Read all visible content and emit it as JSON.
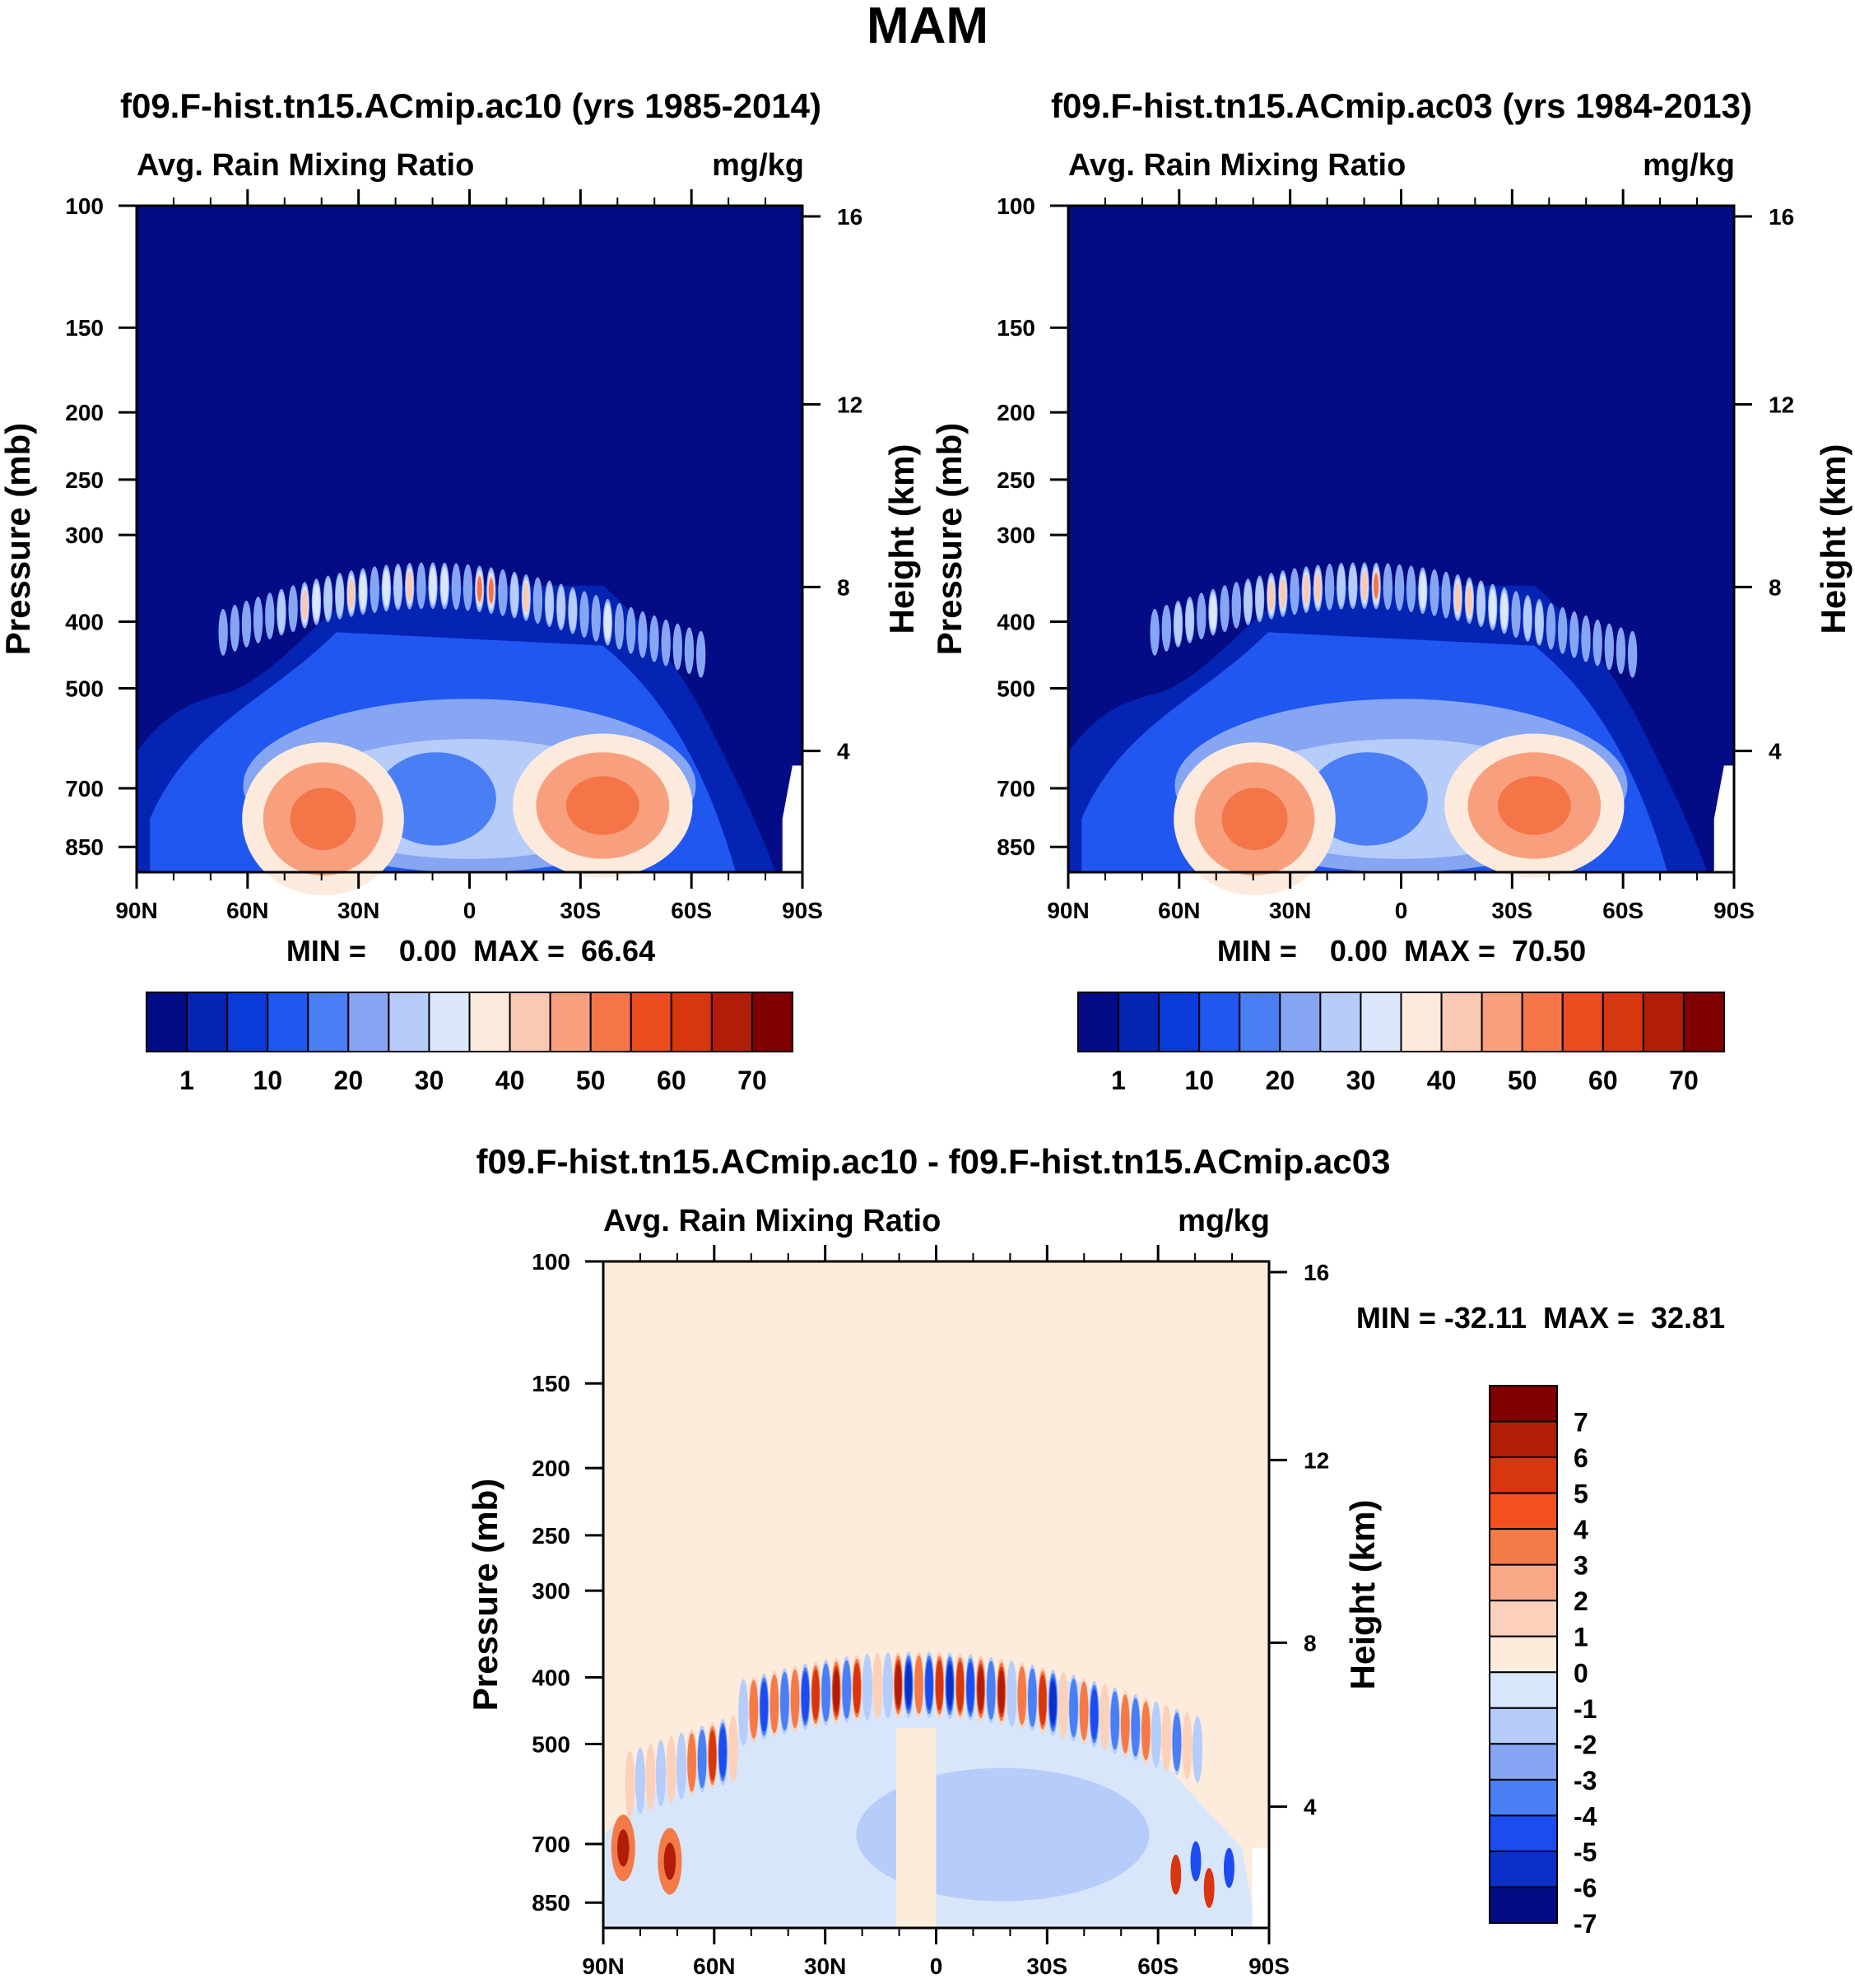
{
  "page_title": "MAM",
  "chart_data": [
    {
      "type": "heatmap",
      "id": "p1",
      "title": "f09.F-hist.tn15.ACmip.ac10 (yrs 1985-2014)",
      "subtitle_left": "Avg. Rain Mixing Ratio",
      "subtitle_right": "mg/kg",
      "ylabel": "Pressure (mb)",
      "ylabel_right": "Height (km)",
      "y_ticks": [
        "100",
        "150",
        "200",
        "250",
        "300",
        "400",
        "500",
        "700",
        "850"
      ],
      "y_ticks_right": [
        "16",
        "12",
        "8",
        "4"
      ],
      "x_ticks": [
        "90N",
        "60N",
        "30N",
        "0",
        "30S",
        "60S",
        "90S"
      ],
      "stats": "MIN =    0.00  MAX =  66.64",
      "colorbar_labels": [
        "1",
        "10",
        "20",
        "30",
        "40",
        "50",
        "60",
        "70"
      ],
      "colorbar_colors": [
        "#030c84",
        "#0424b4",
        "#0a3ad8",
        "#2057f0",
        "#4a7ef4",
        "#86a6f4",
        "#b6ccfa",
        "#dbe8fc",
        "#fcebdc",
        "#fbc9b1",
        "#f8a07e",
        "#f47548",
        "#ec4c1f",
        "#d8360f",
        "#b01e0a",
        "#800000"
      ],
      "min": 0.0,
      "max": 66.64,
      "max_value_text": "66.64"
    },
    {
      "type": "heatmap",
      "id": "p2",
      "title": "f09.F-hist.tn15.ACmip.ac03 (yrs 1984-2013)",
      "subtitle_left": "Avg. Rain Mixing Ratio",
      "subtitle_right": "mg/kg",
      "ylabel": "Pressure (mb)",
      "ylabel_right": "Height (km)",
      "y_ticks": [
        "100",
        "150",
        "200",
        "250",
        "300",
        "400",
        "500",
        "700",
        "850"
      ],
      "y_ticks_right": [
        "16",
        "12",
        "8",
        "4"
      ],
      "x_ticks": [
        "90N",
        "60N",
        "30N",
        "0",
        "30S",
        "60S",
        "90S"
      ],
      "stats": "MIN =    0.00  MAX =  70.50",
      "colorbar_labels": [
        "1",
        "10",
        "20",
        "30",
        "40",
        "50",
        "60",
        "70"
      ],
      "colorbar_colors": [
        "#030c84",
        "#0424b4",
        "#0a3ad8",
        "#2057f0",
        "#4a7ef4",
        "#86a6f4",
        "#b6ccfa",
        "#dbe8fc",
        "#fcebdc",
        "#fbc9b1",
        "#f8a07e",
        "#f47548",
        "#ec4c1f",
        "#d8360f",
        "#b01e0a",
        "#800000"
      ],
      "min": 0.0,
      "max": 70.5
    },
    {
      "type": "heatmap",
      "id": "p3",
      "title": "f09.F-hist.tn15.ACmip.ac10 - f09.F-hist.tn15.ACmip.ac03",
      "subtitle_left": "Avg. Rain Mixing Ratio",
      "subtitle_right": "mg/kg",
      "ylabel": "Pressure (mb)",
      "ylabel_right": "Height (km)",
      "y_ticks": [
        "100",
        "150",
        "200",
        "250",
        "300",
        "400",
        "500",
        "700",
        "850"
      ],
      "y_ticks_right": [
        "16",
        "12",
        "8",
        "4"
      ],
      "x_ticks": [
        "90N",
        "60N",
        "30N",
        "0",
        "30S",
        "60S",
        "90S"
      ],
      "stats": "MIN = -32.11  MAX =  32.81",
      "colorbar_labels": [
        "7",
        "6",
        "5",
        "4",
        "3",
        "2",
        "1",
        "0",
        "-1",
        "-2",
        "-3",
        "-4",
        "-5",
        "-6",
        "-7"
      ],
      "colorbar_colors": [
        "#800000",
        "#b01e0a",
        "#d8360f",
        "#f4501f",
        "#f47a48",
        "#f8a886",
        "#fbd1bb",
        "#fdecdc",
        "#d8e6fb",
        "#b6ccfa",
        "#86a6f4",
        "#4a7ef4",
        "#1c4cf0",
        "#0a30c8",
        "#040c84"
      ],
      "min": -32.11,
      "max": 32.81
    }
  ]
}
